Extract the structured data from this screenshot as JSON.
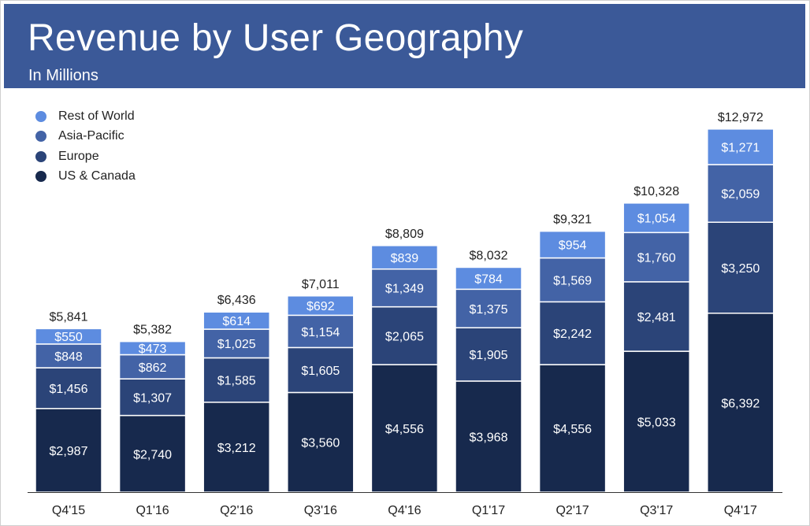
{
  "header": {
    "title": "Revenue by User Geography",
    "subtitle": "In Millions"
  },
  "colors": {
    "header_bg": "#3b5998",
    "us_canada": "#17294d",
    "europe": "#2b4478",
    "asia_pacific": "#4363a6",
    "rest_of_world": "#5d8ce0"
  },
  "legend": [
    {
      "name": "Rest of World",
      "color": "#5d8ce0"
    },
    {
      "name": "Asia-Pacific",
      "color": "#4363a6"
    },
    {
      "name": "Europe",
      "color": "#2b4478"
    },
    {
      "name": "US & Canada",
      "color": "#17294d"
    }
  ],
  "chart_data": {
    "type": "bar",
    "stacked": true,
    "title": "Revenue by User Geography",
    "subtitle": "In Millions",
    "xlabel": "",
    "ylabel": "",
    "ylim": [
      0,
      13000
    ],
    "grid": false,
    "legend_position": "top-left",
    "value_prefix": "$",
    "categories": [
      "Q4'15",
      "Q1'16",
      "Q2'16",
      "Q3'16",
      "Q4'16",
      "Q1'17",
      "Q2'17",
      "Q3'17",
      "Q4'17"
    ],
    "series": [
      {
        "name": "US & Canada",
        "values": [
          2987,
          2740,
          3212,
          3560,
          4556,
          3968,
          4556,
          5033,
          6392
        ]
      },
      {
        "name": "Europe",
        "values": [
          1456,
          1307,
          1585,
          1605,
          2065,
          1905,
          2242,
          2481,
          3250
        ]
      },
      {
        "name": "Asia-Pacific",
        "values": [
          848,
          862,
          1025,
          1154,
          1349,
          1375,
          1569,
          1760,
          2059
        ]
      },
      {
        "name": "Rest of World",
        "values": [
          550,
          473,
          614,
          692,
          839,
          784,
          954,
          1054,
          1271
        ]
      }
    ],
    "totals": [
      5841,
      5382,
      6436,
      7011,
      8809,
      8032,
      9321,
      10328,
      12972
    ]
  }
}
